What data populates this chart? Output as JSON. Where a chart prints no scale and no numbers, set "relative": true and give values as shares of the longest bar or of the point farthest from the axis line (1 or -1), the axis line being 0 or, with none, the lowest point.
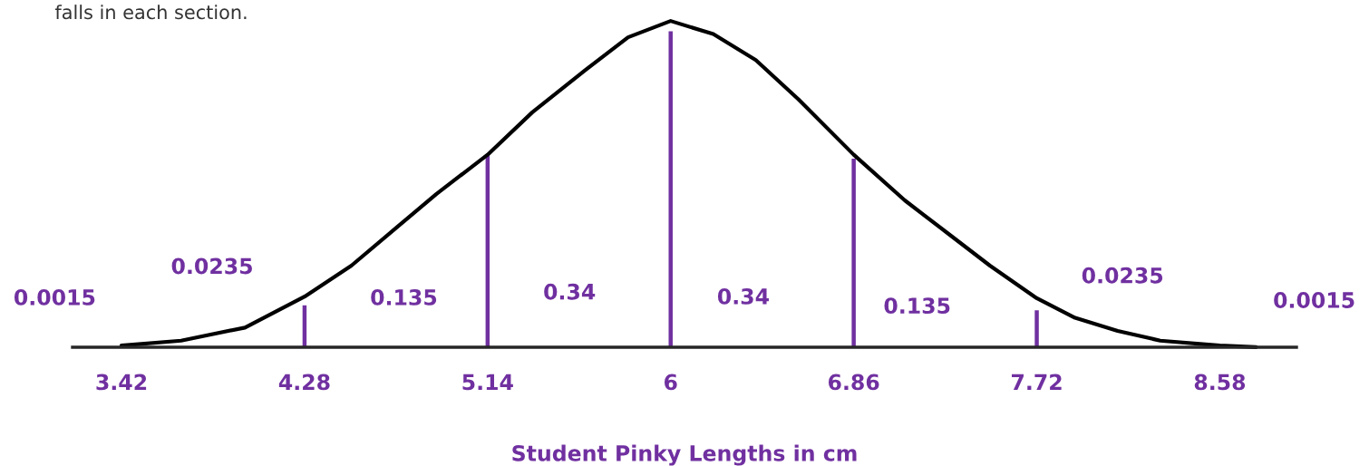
{
  "chart_data": {
    "type": "line",
    "relative": true,
    "xlabel": "Student Pinky Lengths in cm",
    "xlim": [
      3.19,
      8.94
    ],
    "xticks": [
      3.42,
      4.28,
      5.14,
      6,
      6.86,
      7.72,
      8.58
    ],
    "grid": false,
    "legend": false,
    "series": [
      {
        "color": "#000000",
        "x": [
          3.42,
          3.7,
          4.0,
          4.28,
          4.5,
          4.7,
          4.9,
          5.14,
          5.35,
          5.6,
          5.8,
          6,
          6.2,
          6.4,
          6.6,
          6.86,
          7.1,
          7.3,
          7.5,
          7.72,
          7.9,
          8.1,
          8.3,
          8.58,
          8.75
        ],
        "values": [
          0.005,
          0.02,
          0.06,
          0.155,
          0.25,
          0.36,
          0.47,
          0.59,
          0.72,
          0.85,
          0.95,
          1,
          0.96,
          0.88,
          0.76,
          0.59,
          0.45,
          0.35,
          0.25,
          0.15,
          0.09,
          0.05,
          0.02,
          0.005,
          0
        ]
      },
      {
        "type": "bar",
        "color": "#7030a0",
        "x": [
          4.28,
          5.14,
          6,
          6.86,
          7.72
        ],
        "values": [
          0.13,
          0.59,
          0.97,
          0.58,
          0.115
        ]
      }
    ],
    "annotations": [
      "falls in each section.",
      "0.0015",
      "0.0235",
      "0.135",
      "0.34",
      "0.34",
      "0.135",
      "0.0235",
      "0.0015"
    ]
  }
}
